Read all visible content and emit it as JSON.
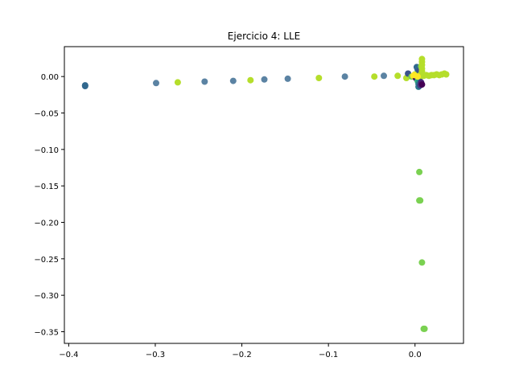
{
  "chart_data": {
    "type": "scatter",
    "title": "Ejercicio 4: LLE",
    "xlabel": "",
    "ylabel": "",
    "xlim": [
      -0.405,
      0.056
    ],
    "ylim": [
      -0.366,
      0.041
    ],
    "x_ticks": [
      -0.4,
      -0.3,
      -0.2,
      -0.1,
      0.0
    ],
    "x_tick_labels": [
      "−0.4",
      "−0.3",
      "−0.2",
      "−0.1",
      "0.0"
    ],
    "y_ticks": [
      0.0,
      -0.05,
      -0.1,
      -0.15,
      -0.2,
      -0.25,
      -0.3,
      -0.35
    ],
    "y_tick_labels": [
      "0.00",
      "−0.05",
      "−0.10",
      "−0.15",
      "−0.20",
      "−0.25",
      "−0.30",
      "−0.35"
    ],
    "grid": false,
    "points": [
      {
        "x": -0.381,
        "y": -0.012,
        "color": "#31688e"
      },
      {
        "x": -0.381,
        "y": -0.013,
        "color": "#31688e"
      },
      {
        "x": -0.299,
        "y": -0.009,
        "color": "#5b83a3"
      },
      {
        "x": -0.274,
        "y": -0.008,
        "color": "#b5de2b"
      },
      {
        "x": -0.243,
        "y": -0.007,
        "color": "#5b83a3"
      },
      {
        "x": -0.21,
        "y": -0.006,
        "color": "#5b83a3"
      },
      {
        "x": -0.19,
        "y": -0.005,
        "color": "#b5de2b"
      },
      {
        "x": -0.174,
        "y": -0.004,
        "color": "#5b83a3"
      },
      {
        "x": -0.147,
        "y": -0.003,
        "color": "#5b83a3"
      },
      {
        "x": -0.111,
        "y": -0.002,
        "color": "#b5de2b"
      },
      {
        "x": -0.081,
        "y": 0.0,
        "color": "#5b83a3"
      },
      {
        "x": -0.047,
        "y": 0.0,
        "color": "#b5de2b"
      },
      {
        "x": -0.036,
        "y": 0.001,
        "color": "#5b83a3"
      },
      {
        "x": -0.02,
        "y": 0.001,
        "color": "#b5de2b"
      },
      {
        "x": -0.01,
        "y": -0.002,
        "color": "#b5de2b"
      },
      {
        "x": -0.008,
        "y": 0.004,
        "color": "#3b528b"
      },
      {
        "x": -0.004,
        "y": 0.0,
        "color": "#7ad151"
      },
      {
        "x": -0.002,
        "y": 0.001,
        "color": "#fde725"
      },
      {
        "x": 0.0,
        "y": 0.003,
        "color": "#b5de2b"
      },
      {
        "x": 0.001,
        "y": -0.002,
        "color": "#440154"
      },
      {
        "x": 0.002,
        "y": 0.013,
        "color": "#31688e"
      },
      {
        "x": 0.003,
        "y": 0.01,
        "color": "#31688e"
      },
      {
        "x": 0.003,
        "y": -0.006,
        "color": "#35b779"
      },
      {
        "x": 0.004,
        "y": -0.01,
        "color": "#2a788e"
      },
      {
        "x": 0.004,
        "y": -0.014,
        "color": "#2a788e"
      },
      {
        "x": 0.005,
        "y": 0.008,
        "color": "#3b528b"
      },
      {
        "x": 0.005,
        "y": -0.004,
        "color": "#21918c"
      },
      {
        "x": 0.006,
        "y": -0.012,
        "color": "#443983"
      },
      {
        "x": 0.006,
        "y": 0.002,
        "color": "#b5de2b"
      },
      {
        "x": 0.007,
        "y": -0.008,
        "color": "#482677"
      },
      {
        "x": 0.007,
        "y": 0.014,
        "color": "#7ad151"
      },
      {
        "x": 0.008,
        "y": 0.024,
        "color": "#b5de2b"
      },
      {
        "x": 0.008,
        "y": 0.02,
        "color": "#b5de2b"
      },
      {
        "x": 0.008,
        "y": 0.016,
        "color": "#b5de2b"
      },
      {
        "x": 0.008,
        "y": 0.011,
        "color": "#b5de2b"
      },
      {
        "x": 0.008,
        "y": 0.007,
        "color": "#b5de2b"
      },
      {
        "x": 0.008,
        "y": -0.011,
        "color": "#440154"
      },
      {
        "x": 0.008,
        "y": 0.001,
        "color": "#b5de2b"
      },
      {
        "x": 0.01,
        "y": 0.001,
        "color": "#b5de2b"
      },
      {
        "x": 0.013,
        "y": 0.002,
        "color": "#b5de2b"
      },
      {
        "x": 0.016,
        "y": 0.001,
        "color": "#b5de2b"
      },
      {
        "x": 0.019,
        "y": 0.002,
        "color": "#b5de2b"
      },
      {
        "x": 0.022,
        "y": 0.002,
        "color": "#b5de2b"
      },
      {
        "x": 0.025,
        "y": 0.003,
        "color": "#b5de2b"
      },
      {
        "x": 0.028,
        "y": 0.002,
        "color": "#b5de2b"
      },
      {
        "x": 0.031,
        "y": 0.003,
        "color": "#b5de2b"
      },
      {
        "x": 0.034,
        "y": 0.004,
        "color": "#b5de2b"
      },
      {
        "x": 0.036,
        "y": 0.003,
        "color": "#b5de2b"
      },
      {
        "x": 0.003,
        "y": 0.0,
        "color": "#fde725"
      },
      {
        "x": -0.001,
        "y": 0.002,
        "color": "#fde725"
      },
      {
        "x": 0.005,
        "y": -0.131,
        "color": "#7ad151"
      },
      {
        "x": 0.005,
        "y": -0.17,
        "color": "#7ad151"
      },
      {
        "x": 0.006,
        "y": -0.17,
        "color": "#7ad151"
      },
      {
        "x": 0.008,
        "y": -0.255,
        "color": "#7ad151"
      },
      {
        "x": 0.01,
        "y": -0.346,
        "color": "#7ad151"
      },
      {
        "x": 0.011,
        "y": -0.346,
        "color": "#7ad151"
      }
    ]
  }
}
